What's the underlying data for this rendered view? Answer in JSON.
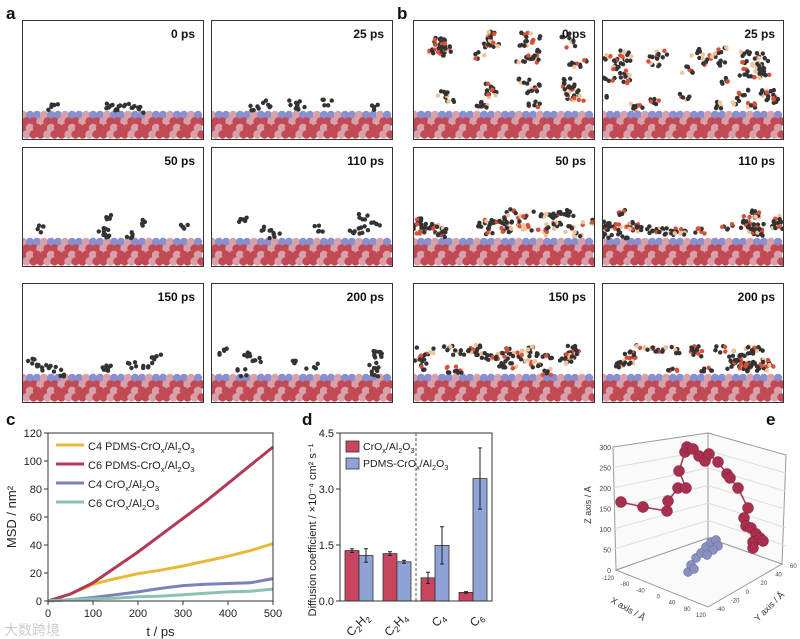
{
  "panels": {
    "a": "a",
    "b": "b",
    "c": "c",
    "d": "d",
    "e": "e"
  },
  "snapshots": {
    "a": [
      "0 ps",
      "25 ps",
      "50 ps",
      "110 ps",
      "150 ps",
      "200 ps"
    ],
    "b": [
      "0 ps",
      "25 ps",
      "50 ps",
      "110 ps",
      "150 ps",
      "200 ps"
    ]
  },
  "colors": {
    "yellow": "#e7b83a",
    "crimson": "#b23a56",
    "slate": "#7b82b8",
    "teal": "#8cc2b2",
    "barRed": "#c8455f",
    "barBlue": "#8fa3d6"
  },
  "watermark": "大数跨境",
  "chart_data": [
    {
      "type": "line",
      "title": "",
      "xlabel": "t / ps",
      "ylabel": "MSD / nm²",
      "xlim": [
        0,
        500
      ],
      "ylim": [
        0,
        120
      ],
      "xticks": [
        "0",
        "100",
        "200",
        "300",
        "400",
        "500"
      ],
      "yticks": [
        "0",
        "20",
        "40",
        "60",
        "80",
        "100",
        "120"
      ],
      "legend": "top-left",
      "x": [
        0,
        50,
        100,
        150,
        200,
        250,
        300,
        350,
        400,
        450,
        500
      ],
      "series": [
        {
          "name": "C4 PDMS-CrOx/Al2O3",
          "label_html": [
            "C4 PDMS-CrO",
            "x",
            "/Al",
            "2",
            "O",
            "3"
          ],
          "values": [
            0,
            5,
            12,
            16,
            19.5,
            22,
            25,
            28.5,
            32,
            36,
            41
          ]
        },
        {
          "name": "C6 PDMS-CrOx/Al2O3",
          "label_html": [
            "C6 PDMS-CrO",
            "x",
            "/Al",
            "2",
            "O",
            "3"
          ],
          "values": [
            0,
            5,
            13,
            24,
            35,
            47,
            59,
            71,
            84,
            97,
            110
          ]
        },
        {
          "name": "C4 CrOx/Al2O3",
          "label_html": [
            "C4 CrO",
            "x",
            "/Al",
            "2",
            "O",
            "3"
          ],
          "values": [
            0,
            1,
            2.5,
            4.5,
            6.5,
            9,
            11,
            12,
            12.5,
            13,
            16
          ]
        },
        {
          "name": "C6 CrOx/Al2O3",
          "label_html": [
            "C6 CrO",
            "x",
            "/Al",
            "2",
            "O",
            "3"
          ],
          "values": [
            0,
            1,
            1.5,
            2,
            3,
            3.5,
            4.5,
            5.5,
            6.5,
            7,
            8.5
          ]
        }
      ]
    },
    {
      "type": "bar",
      "title": "",
      "xlabel": "",
      "ylabel": "Diffusion coefficient / ×10⁻⁴ cm² s⁻¹",
      "ylim": [
        0,
        4.5
      ],
      "yticks": [
        "0.0",
        "1.5",
        "3.0",
        "4.5"
      ],
      "legend": "top-left",
      "categories": [
        "C2H2",
        "C2H4",
        "C4",
        "C6"
      ],
      "category_labels": [
        [
          "C",
          "2",
          "H",
          "2"
        ],
        [
          "C",
          "2",
          "H",
          "4"
        ],
        [
          "C",
          "4",
          "",
          ""
        ],
        [
          "C",
          "6",
          "",
          ""
        ]
      ],
      "series": [
        {
          "name": "CrOx/Al2O3",
          "label_html": [
            "CrO",
            "x",
            "/Al",
            "2",
            "O",
            "3"
          ],
          "values": [
            1.35,
            1.27,
            0.62,
            0.23
          ],
          "errors": [
            0.05,
            0.05,
            0.15,
            0.02
          ]
        },
        {
          "name": "PDMS-CrOx/Al2O3",
          "label_html": [
            "PDMS-CrO",
            "x",
            "/Al",
            "2",
            "O",
            "3"
          ],
          "values": [
            1.22,
            1.05,
            1.49,
            3.28
          ],
          "errors": [
            0.18,
            0.04,
            0.5,
            0.82
          ]
        }
      ]
    },
    {
      "type": "scatter",
      "title": "",
      "xlabel": "X axis / Å",
      "ylabel": "Y axis / Å",
      "zlabel": "Z axis / Å",
      "zticks": [
        "0",
        "50",
        "100",
        "150",
        "200",
        "250",
        "300"
      ],
      "xticks": [
        "-120",
        "-80",
        "-40",
        "0",
        "40",
        "80",
        "120"
      ],
      "yticks": [
        "-40",
        "-20",
        "0",
        "20",
        "40",
        "60"
      ]
    }
  ]
}
